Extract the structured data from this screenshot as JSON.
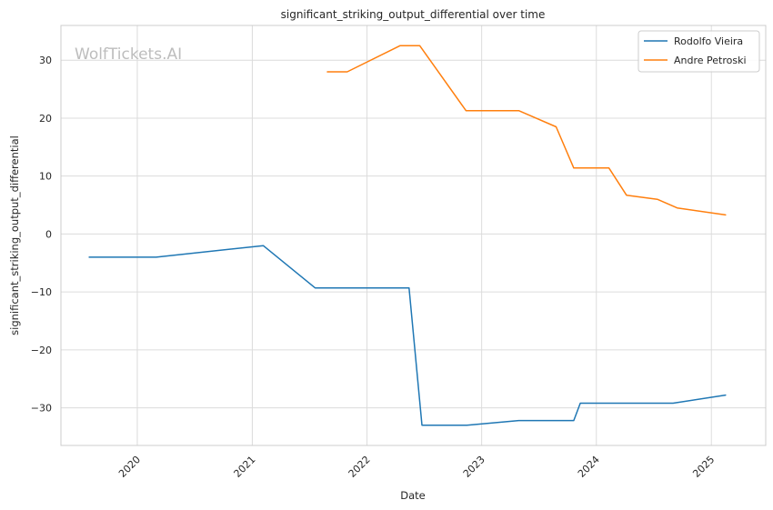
{
  "chart_data": {
    "type": "line",
    "title": "significant_striking_output_differential over time",
    "xlabel": "Date",
    "ylabel": "significant_striking_output_differential",
    "watermark": "WolfTickets.AI",
    "xlim": [
      "2019-05-03",
      "2025-06-23"
    ],
    "ylim": [
      -36.5,
      36
    ],
    "x_ticks": [
      {
        "date": "2020-01-01",
        "label": "2020"
      },
      {
        "date": "2021-01-01",
        "label": "2021"
      },
      {
        "date": "2022-01-01",
        "label": "2022"
      },
      {
        "date": "2023-01-01",
        "label": "2023"
      },
      {
        "date": "2024-01-01",
        "label": "2024"
      },
      {
        "date": "2025-01-01",
        "label": "2025"
      }
    ],
    "y_ticks": [
      {
        "value": -30,
        "label": "−30"
      },
      {
        "value": -20,
        "label": "−20"
      },
      {
        "value": -10,
        "label": "−10"
      },
      {
        "value": 0,
        "label": "0"
      },
      {
        "value": 10,
        "label": "10"
      },
      {
        "value": 20,
        "label": "20"
      },
      {
        "value": 30,
        "label": "30"
      }
    ],
    "grid": true,
    "legend_position": "top-right",
    "series": [
      {
        "name": "Rodolfo Vieira",
        "color": "#1f77b4",
        "points": [
          {
            "x": "2019-08-01",
            "y": -4.0
          },
          {
            "x": "2020-03-01",
            "y": -4.0
          },
          {
            "x": "2021-02-05",
            "y": -2.0
          },
          {
            "x": "2021-07-20",
            "y": -9.3
          },
          {
            "x": "2022-05-15",
            "y": -9.3
          },
          {
            "x": "2022-06-25",
            "y": -33.0
          },
          {
            "x": "2022-11-15",
            "y": -33.0
          },
          {
            "x": "2023-04-29",
            "y": -32.2
          },
          {
            "x": "2023-10-21",
            "y": -32.2
          },
          {
            "x": "2023-11-11",
            "y": -29.2
          },
          {
            "x": "2024-09-01",
            "y": -29.2
          },
          {
            "x": "2025-02-15",
            "y": -27.8
          }
        ]
      },
      {
        "name": "Andre Petroski",
        "color": "#ff7f0e",
        "points": [
          {
            "x": "2021-08-28",
            "y": 28.0
          },
          {
            "x": "2021-10-30",
            "y": 28.0
          },
          {
            "x": "2022-04-16",
            "y": 32.5
          },
          {
            "x": "2022-06-18",
            "y": 32.5
          },
          {
            "x": "2022-11-12",
            "y": 21.3
          },
          {
            "x": "2023-04-29",
            "y": 21.3
          },
          {
            "x": "2023-08-26",
            "y": 18.5
          },
          {
            "x": "2023-10-21",
            "y": 11.4
          },
          {
            "x": "2024-02-10",
            "y": 11.4
          },
          {
            "x": "2024-04-06",
            "y": 6.7
          },
          {
            "x": "2024-07-13",
            "y": 6.0
          },
          {
            "x": "2024-09-14",
            "y": 4.5
          },
          {
            "x": "2025-02-15",
            "y": 3.3
          }
        ]
      }
    ]
  }
}
